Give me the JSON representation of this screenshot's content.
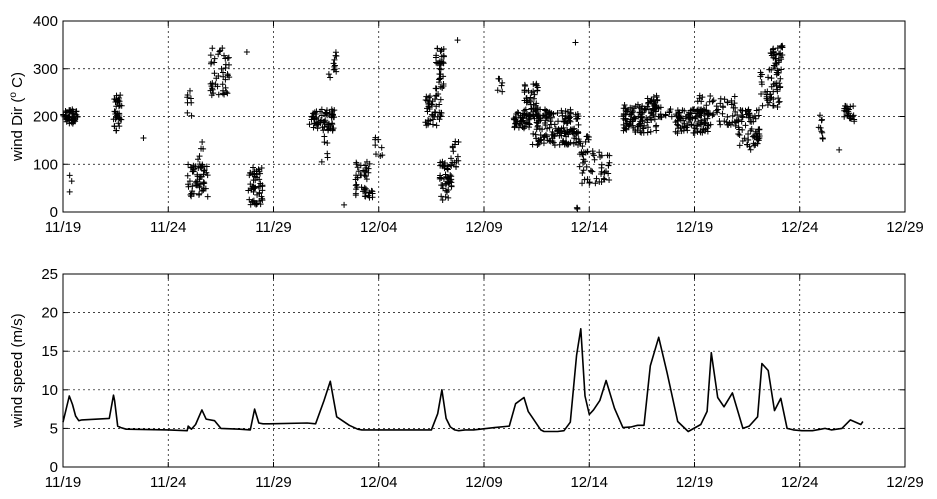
{
  "chart_data": [
    {
      "type": "scatter",
      "marker": "+",
      "ylabel": "wind Dir (",
      "ylabel_sup": "o",
      "ylabel_unit": " C)",
      "xlim": [
        "11/19",
        "12/29"
      ],
      "ylim": [
        0,
        400
      ],
      "xticks": [
        "11/19",
        "11/24",
        "11/29",
        "12/04",
        "12/09",
        "12/14",
        "12/19",
        "12/24",
        "12/29"
      ],
      "yticks": [
        0,
        100,
        200,
        300,
        400
      ],
      "grid": true,
      "color": "#000000",
      "clusters": [
        {
          "x": [
            1.0,
            1.7
          ],
          "y": [
            185,
            215
          ],
          "n": 50
        },
        {
          "x": [
            1.3,
            1.5
          ],
          "y": [
            30,
            80
          ],
          "n": 3
        },
        {
          "x": [
            3.4,
            3.8
          ],
          "y": [
            170,
            245
          ],
          "n": 35
        },
        {
          "x": [
            4.8,
            4.9
          ],
          "y": [
            155,
            155
          ],
          "n": 1
        },
        {
          "x": [
            6.8,
            7.2
          ],
          "y": [
            200,
            255
          ],
          "n": 8
        },
        {
          "x": [
            6.9,
            7.9
          ],
          "y": [
            30,
            100
          ],
          "n": 55
        },
        {
          "x": [
            7.4,
            7.7
          ],
          "y": [
            100,
            165
          ],
          "n": 6
        },
        {
          "x": [
            8.0,
            8.9
          ],
          "y": [
            240,
            345
          ],
          "n": 45
        },
        {
          "x": [
            9.7,
            9.8
          ],
          "y": [
            335,
            335
          ],
          "n": 1
        },
        {
          "x": [
            9.8,
            10.5
          ],
          "y": [
            15,
            95
          ],
          "n": 55
        },
        {
          "x": [
            12.7,
            13.9
          ],
          "y": [
            170,
            215
          ],
          "n": 70
        },
        {
          "x": [
            13.2,
            13.6
          ],
          "y": [
            100,
            160
          ],
          "n": 6
        },
        {
          "x": [
            13.6,
            14.0
          ],
          "y": [
            280,
            345
          ],
          "n": 12
        },
        {
          "x": [
            14.3,
            14.4
          ],
          "y": [
            15,
            15
          ],
          "n": 1
        },
        {
          "x": [
            14.9,
            15.8
          ],
          "y": [
            30,
            110
          ],
          "n": 45
        },
        {
          "x": [
            15.8,
            16.2
          ],
          "y": [
            100,
            170
          ],
          "n": 8
        },
        {
          "x": [
            18.2,
            19.0
          ],
          "y": [
            180,
            250
          ],
          "n": 45
        },
        {
          "x": [
            18.7,
            19.1
          ],
          "y": [
            255,
            345
          ],
          "n": 35
        },
        {
          "x": [
            18.9,
            19.5
          ],
          "y": [
            25,
            110
          ],
          "n": 45
        },
        {
          "x": [
            19.4,
            19.8
          ],
          "y": [
            90,
            150
          ],
          "n": 15
        },
        {
          "x": [
            19.7,
            19.8
          ],
          "y": [
            360,
            360
          ],
          "n": 1
        },
        {
          "x": [
            21.6,
            21.9
          ],
          "y": [
            250,
            290
          ],
          "n": 6
        },
        {
          "x": [
            22.4,
            23.2
          ],
          "y": [
            175,
            210
          ],
          "n": 45
        },
        {
          "x": [
            22.9,
            23.6
          ],
          "y": [
            200,
            270
          ],
          "n": 50
        },
        {
          "x": [
            23.3,
            25.5
          ],
          "y": [
            140,
            215
          ],
          "n": 160
        },
        {
          "x": [
            25.5,
            26.0
          ],
          "y": [
            120,
            160
          ],
          "n": 12
        },
        {
          "x": [
            25.3,
            25.4
          ],
          "y": [
            355,
            355
          ],
          "n": 1
        },
        {
          "x": [
            25.4,
            25.6
          ],
          "y": [
            5,
            10
          ],
          "n": 3
        },
        {
          "x": [
            25.5,
            27.0
          ],
          "y": [
            60,
            130
          ],
          "n": 45
        },
        {
          "x": [
            27.6,
            29.2
          ],
          "y": [
            165,
            225
          ],
          "n": 110
        },
        {
          "x": [
            28.7,
            29.3
          ],
          "y": [
            210,
            245
          ],
          "n": 20
        },
        {
          "x": [
            29.2,
            30.0
          ],
          "y": [
            195,
            235
          ],
          "n": 15
        },
        {
          "x": [
            30.1,
            31.7
          ],
          "y": [
            165,
            215
          ],
          "n": 100
        },
        {
          "x": [
            31.0,
            33.0
          ],
          "y": [
            180,
            245
          ],
          "n": 60
        },
        {
          "x": [
            33.0,
            34.1
          ],
          "y": [
            130,
            215
          ],
          "n": 70
        },
        {
          "x": [
            34.1,
            35.1
          ],
          "y": [
            215,
            300
          ],
          "n": 45
        },
        {
          "x": [
            34.6,
            35.2
          ],
          "y": [
            290,
            350
          ],
          "n": 35
        },
        {
          "x": [
            36.9,
            37.1
          ],
          "y": [
            150,
            205
          ],
          "n": 10
        },
        {
          "x": [
            37.8,
            37.9
          ],
          "y": [
            130,
            130
          ],
          "n": 1
        },
        {
          "x": [
            38.1,
            38.6
          ],
          "y": [
            190,
            225
          ],
          "n": 25
        }
      ]
    },
    {
      "type": "line",
      "ylabel": "wind speed (m/s)",
      "xlim": [
        "11/19",
        "12/29"
      ],
      "ylim": [
        0,
        25
      ],
      "xticks": [
        "11/19",
        "11/24",
        "11/29",
        "12/04",
        "12/09",
        "12/14",
        "12/19",
        "12/24",
        "12/29"
      ],
      "yticks": [
        0,
        5,
        10,
        15,
        20,
        25
      ],
      "grid": true,
      "color": "#000000",
      "x": [
        1.0,
        1.3,
        1.45,
        1.6,
        1.75,
        1.9,
        3.2,
        3.4,
        3.45,
        3.6,
        3.75,
        4.0,
        6.0,
        6.9,
        6.95,
        7.1,
        7.3,
        7.6,
        7.8,
        8.2,
        8.5,
        9.4,
        9.9,
        10.1,
        10.3,
        10.5,
        10.8,
        12.6,
        13.0,
        13.4,
        13.7,
        14.0,
        14.6,
        15.0,
        15.2,
        15.6,
        16.1,
        18.5,
        18.8,
        19.0,
        19.2,
        19.4,
        19.6,
        19.8,
        20.1,
        20.5,
        21.5,
        22.2,
        22.5,
        22.9,
        23.1,
        23.3,
        23.6,
        23.7,
        23.85,
        24.0,
        24.3,
        24.5,
        24.8,
        25.1,
        25.4,
        25.6,
        25.8,
        26.0,
        26.2,
        26.5,
        26.8,
        27.2,
        27.6,
        28.0,
        28.3,
        28.6,
        28.9,
        29.3,
        29.7,
        30.2,
        30.7,
        31.3,
        31.6,
        31.8,
        32.1,
        32.4,
        32.8,
        33.3,
        33.6,
        34.0,
        34.2,
        34.5,
        34.8,
        35.1,
        35.4,
        35.7,
        36.1,
        36.6,
        37.0,
        37.2,
        37.5,
        38.0,
        38.4,
        38.9,
        39.0
      ],
      "y": [
        5.8,
        9.2,
        8.1,
        6.6,
        6.0,
        6.1,
        6.3,
        9.3,
        8.6,
        5.3,
        5.1,
        4.9,
        4.8,
        4.7,
        5.3,
        4.9,
        5.5,
        7.4,
        6.2,
        6.0,
        5.0,
        4.9,
        4.8,
        7.5,
        5.7,
        5.6,
        5.6,
        5.7,
        5.6,
        8.6,
        11.1,
        6.5,
        5.4,
        4.9,
        4.8,
        4.8,
        4.8,
        4.8,
        6.9,
        10.0,
        6.3,
        5.2,
        4.8,
        4.7,
        4.8,
        4.8,
        5.1,
        5.3,
        8.2,
        9.0,
        7.2,
        6.4,
        5.2,
        4.8,
        4.6,
        4.6,
        4.6,
        4.6,
        4.7,
        5.8,
        14.5,
        17.9,
        9.2,
        6.8,
        7.4,
        8.6,
        11.2,
        7.6,
        5.1,
        5.2,
        5.4,
        5.4,
        13.1,
        16.8,
        12.2,
        5.9,
        4.6,
        5.5,
        7.2,
        14.8,
        9.0,
        7.8,
        9.6,
        5.0,
        5.3,
        6.5,
        13.4,
        12.5,
        7.3,
        8.9,
        5.0,
        4.8,
        4.7,
        4.7,
        4.9,
        5.0,
        4.8,
        5.0,
        6.1,
        5.5,
        5.9
      ]
    }
  ]
}
